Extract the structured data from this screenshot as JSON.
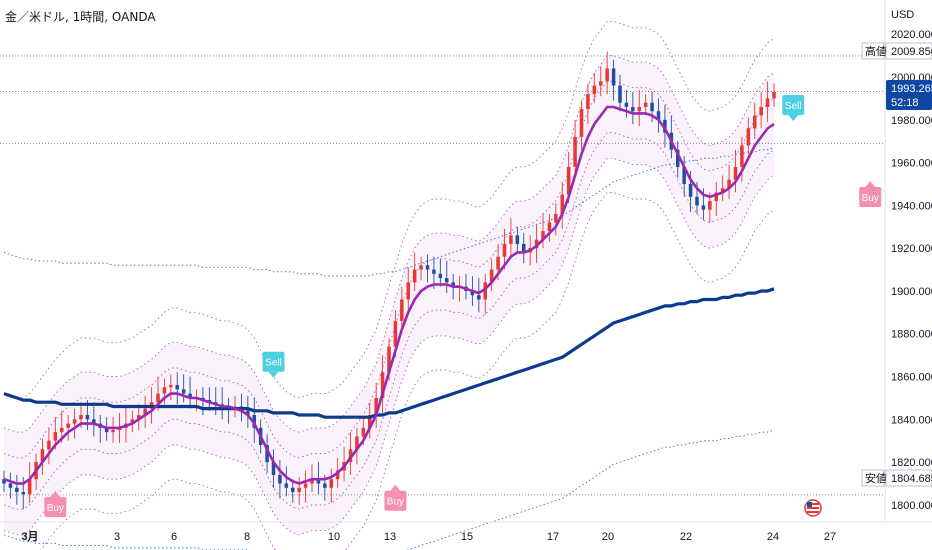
{
  "header": {
    "title": "金／米ドル, 1時間, OANDA",
    "currency": "USD"
  },
  "markers": {
    "high_label": "高値",
    "high_value": "2009.850",
    "low_label": "安値",
    "low_value": "1804.685",
    "last_price": "1993.265",
    "countdown": "52:18"
  },
  "signals": [
    {
      "label": "Sell",
      "kind": "sell",
      "x_index": 42,
      "price": 1866
    },
    {
      "label": "Sell",
      "kind": "sell",
      "x_index": 123,
      "price": 1986
    },
    {
      "label": "Buy",
      "kind": "buy",
      "x_index": 8,
      "price": 1798
    },
    {
      "label": "Buy",
      "kind": "buy",
      "x_index": 61,
      "price": 1801
    },
    {
      "label": "Buy",
      "kind": "buy",
      "x_index": 135,
      "price": 1943
    }
  ],
  "colors": {
    "up": "#e53935",
    "down": "#1e4fa0",
    "ma_fast": "#9c27b0",
    "ma_slow": "#0d3b8c",
    "band": "#9c27b0",
    "outer_band": "#1e5bb5",
    "sell": "#4dd0e1",
    "buy": "#f48fb1",
    "last_price_bg": "#0d47a1"
  },
  "chart_data": {
    "type": "line",
    "x_tick_labels": [
      "3月",
      "3",
      "6",
      "8",
      "10",
      "13",
      "15",
      "17",
      "20",
      "22",
      "24",
      "27"
    ],
    "y_tick_labels": [
      "1800.000",
      "1820.000",
      "1840.000",
      "1860.000",
      "1880.000",
      "1900.000",
      "1920.000",
      "1940.000",
      "1960.000",
      "1980.000",
      "2000.000",
      "2020.000"
    ],
    "ylim": [
      1792,
      2036
    ],
    "price_series": [
      1810,
      1808,
      1806,
      1805,
      1812,
      1820,
      1826,
      1830,
      1834,
      1836,
      1838,
      1840,
      1842,
      1840,
      1838,
      1836,
      1834,
      1835,
      1836,
      1838,
      1840,
      1842,
      1845,
      1848,
      1852,
      1855,
      1856,
      1854,
      1852,
      1850,
      1850,
      1849,
      1848,
      1847,
      1846,
      1845,
      1846,
      1844,
      1842,
      1836,
      1828,
      1820,
      1814,
      1810,
      1808,
      1806,
      1808,
      1810,
      1812,
      1810,
      1808,
      1812,
      1816,
      1820,
      1826,
      1832,
      1836,
      1842,
      1850,
      1862,
      1874,
      1886,
      1896,
      1904,
      1910,
      1912,
      1910,
      1908,
      1906,
      1904,
      1902,
      1902,
      1900,
      1898,
      1896,
      1904,
      1910,
      1916,
      1922,
      1926,
      1922,
      1918,
      1920,
      1924,
      1928,
      1932,
      1936,
      1945,
      1958,
      1972,
      1985,
      1992,
      1996,
      1998,
      2004,
      1996,
      1988,
      1986,
      1984,
      1986,
      1988,
      1984,
      1980,
      1974,
      1966,
      1958,
      1950,
      1944,
      1940,
      1938,
      1942,
      1946,
      1948,
      1952,
      1958,
      1968,
      1976,
      1982,
      1986,
      1990,
      1993
    ],
    "sma_fast": [
      1812,
      1811,
      1810,
      1810,
      1812,
      1816,
      1820,
      1824,
      1828,
      1831,
      1834,
      1836,
      1838,
      1838,
      1838,
      1837,
      1836,
      1836,
      1836,
      1837,
      1838,
      1840,
      1842,
      1844,
      1847,
      1850,
      1852,
      1852,
      1851,
      1850,
      1850,
      1849,
      1848,
      1847,
      1846,
      1846,
      1845,
      1844,
      1842,
      1838,
      1832,
      1826,
      1820,
      1816,
      1813,
      1811,
      1810,
      1811,
      1812,
      1812,
      1812,
      1813,
      1815,
      1818,
      1822,
      1826,
      1830,
      1836,
      1842,
      1852,
      1862,
      1872,
      1882,
      1890,
      1896,
      1900,
      1902,
      1903,
      1903,
      1903,
      1902,
      1902,
      1901,
      1900,
      1899,
      1901,
      1904,
      1908,
      1912,
      1916,
      1918,
      1918,
      1919,
      1921,
      1924,
      1927,
      1930,
      1936,
      1944,
      1954,
      1964,
      1972,
      1978,
      1982,
      1986,
      1986,
      1985,
      1984,
      1983,
      1983,
      1983,
      1982,
      1980,
      1976,
      1970,
      1964,
      1958,
      1952,
      1948,
      1945,
      1944,
      1945,
      1946,
      1948,
      1951,
      1956,
      1962,
      1968,
      1972,
      1976,
      1978
    ],
    "sma_slow": [
      1852,
      1851,
      1850,
      1849,
      1849,
      1848,
      1848,
      1848,
      1848,
      1847,
      1847,
      1847,
      1847,
      1847,
      1847,
      1847,
      1847,
      1846,
      1846,
      1846,
      1846,
      1846,
      1846,
      1846,
      1846,
      1846,
      1846,
      1846,
      1846,
      1846,
      1846,
      1845,
      1845,
      1845,
      1845,
      1845,
      1845,
      1845,
      1845,
      1844,
      1844,
      1844,
      1843,
      1843,
      1843,
      1843,
      1842,
      1842,
      1842,
      1842,
      1841,
      1841,
      1841,
      1841,
      1841,
      1841,
      1841,
      1841,
      1842,
      1842,
      1843,
      1843,
      1844,
      1845,
      1846,
      1847,
      1848,
      1849,
      1850,
      1851,
      1852,
      1853,
      1854,
      1855,
      1856,
      1857,
      1858,
      1859,
      1860,
      1861,
      1862,
      1863,
      1864,
      1865,
      1866,
      1867,
      1868,
      1869,
      1871,
      1873,
      1875,
      1877,
      1879,
      1881,
      1883,
      1885,
      1886,
      1887,
      1888,
      1889,
      1890,
      1891,
      1892,
      1893,
      1893,
      1894,
      1894,
      1895,
      1895,
      1896,
      1896,
      1896,
      1897,
      1897,
      1898,
      1898,
      1899,
      1899,
      1900,
      1900,
      1901
    ],
    "grid": false
  }
}
